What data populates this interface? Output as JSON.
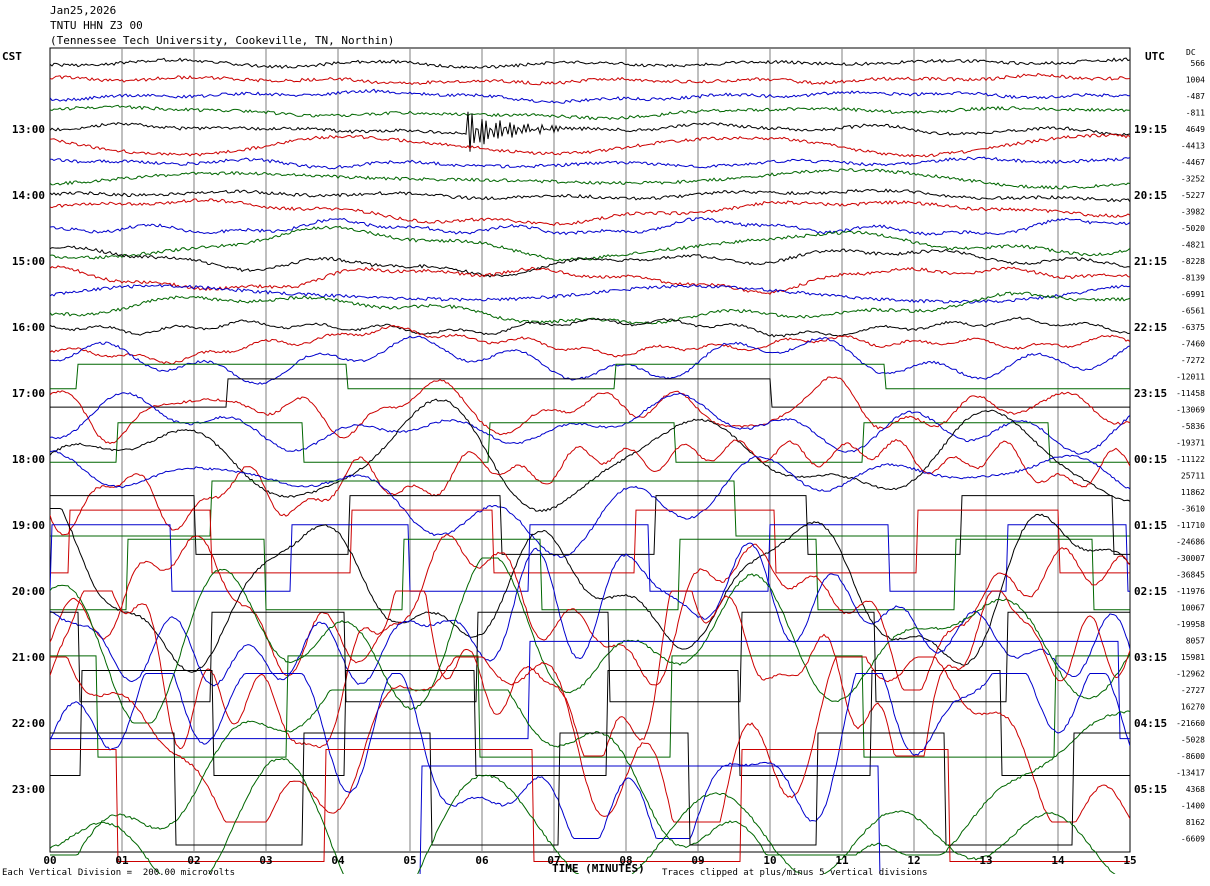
{
  "header": {
    "date": "Jan25,2026",
    "station": "TNTU HHN Z3 00",
    "location": "(Tennessee Tech University, Cookeville, TN, Northin)"
  },
  "left_axis_label": "CST",
  "right_axis_label": "UTC",
  "dc_label": "DC",
  "footer": {
    "division_note": "Each Vertical Division =  200.00 microvolts",
    "clip_note": "Traces clipped at plus/minus 5 vertical divisions",
    "x_title": "TIME (MINUTES)"
  },
  "colors": {
    "cycle": [
      "#000000",
      "#cc0000",
      "#0000cc",
      "#006600"
    ],
    "grid": "#7f7f7f",
    "event": "#006600"
  },
  "chart_data": {
    "type": "line",
    "title": "TNTU HHN Z3 00",
    "xlabel": "TIME (MINUTES)",
    "xlim": [
      0,
      15
    ],
    "x_ticks": [
      "00",
      "01",
      "02",
      "03",
      "04",
      "05",
      "06",
      "07",
      "08",
      "09",
      "10",
      "11",
      "12",
      "13",
      "14",
      "15"
    ],
    "trace_interval_minutes": 15,
    "start_hour_cst": 12,
    "left_hour_labels": [
      "13:00",
      "14:00",
      "15:00",
      "16:00",
      "17:00",
      "18:00",
      "19:00",
      "20:00",
      "21:00",
      "22:00",
      "23:00"
    ],
    "right_hour_labels": [
      "19:15",
      "20:15",
      "21:15",
      "22:15",
      "23:15",
      "00:15",
      "01:15",
      "02:15",
      "03:15",
      "04:15",
      "05:15"
    ],
    "dc_offsets": [
      "566",
      "1004",
      "-487",
      "-811",
      "4649",
      "-4413",
      "-4467",
      "-3252",
      "-5227",
      "-3982",
      "-5020",
      "-4821",
      "-8228",
      "-8139",
      "-6991",
      "-6561",
      "-6375",
      "-7460",
      "-7272",
      "-12011",
      "-11458",
      "-13069",
      "-5836",
      "-19371",
      "-11122",
      "25711",
      "11862",
      "-3610",
      "-11710",
      "-24686",
      "-30007",
      "-36845",
      "-11976",
      "10067",
      "-19958",
      "8057",
      "15981",
      "-12962",
      "-2727",
      "16270",
      "-21660",
      "-5028",
      "-8600",
      "-13417",
      "4368",
      "-1400",
      "8162",
      "-6609"
    ],
    "event": {
      "trace_index": 4,
      "minute": 5.8,
      "description": ""
    }
  }
}
